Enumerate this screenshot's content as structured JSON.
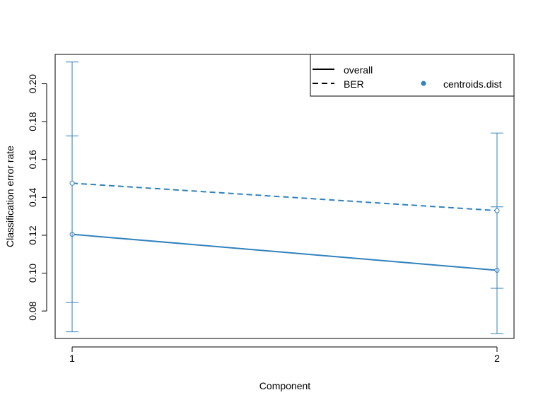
{
  "chart_data": {
    "type": "line",
    "title": "",
    "xlabel": "Component",
    "ylabel": "Classification error rate",
    "x": [
      1,
      2
    ],
    "x_tick_labels": [
      "1",
      "2"
    ],
    "y_ticks": [
      0.08,
      0.1,
      0.12,
      0.14,
      0.16,
      0.18,
      0.2
    ],
    "y_tick_labels": [
      "0.08",
      "0.10",
      "0.12",
      "0.14",
      "0.16",
      "0.18",
      "0.20"
    ],
    "ylim": [
      0.0655,
      0.2155
    ],
    "xlim": [
      0.96,
      2.04
    ],
    "color": "#3182BD",
    "series": [
      {
        "name": "overall",
        "linestyle": "solid",
        "values": [
          0.1205,
          0.1015
        ],
        "err_low": [
          0.0845,
          0.092
        ],
        "err_high": [
          0.1725,
          0.135
        ]
      },
      {
        "name": "BER",
        "linestyle": "dashed",
        "values": [
          0.1475,
          0.133
        ],
        "err_low": [
          0.069,
          0.068
        ],
        "err_high": [
          0.2115,
          0.174
        ]
      }
    ],
    "legend": {
      "position": "top-right",
      "line_entries": [
        "overall",
        "BER"
      ],
      "point_entry": "centroids.dist"
    }
  }
}
